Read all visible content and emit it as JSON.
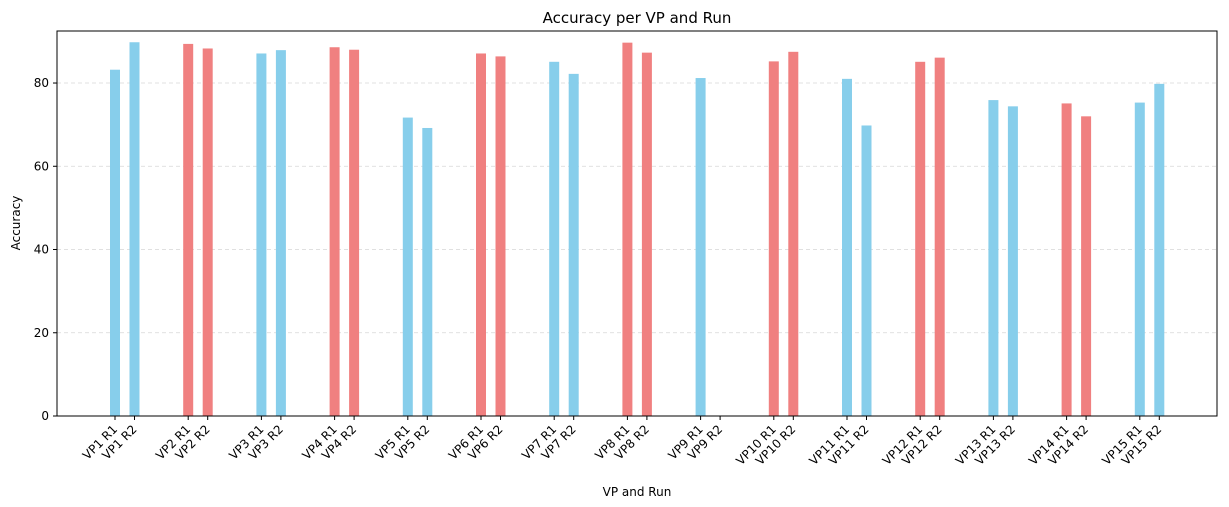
{
  "chart_data": {
    "type": "bar",
    "title": "Accuracy per VP and Run",
    "xlabel": "VP and Run",
    "ylabel": "Accuracy",
    "ylim": [
      0,
      92.5
    ],
    "yticks": [
      0,
      20,
      40,
      60,
      80
    ],
    "grid": "y-dashed",
    "colors": {
      "blue": "#87CEEB",
      "red": "#F08080"
    },
    "categories": [
      "VP1 R1",
      "VP1 R2",
      "VP2 R1",
      "VP2 R2",
      "VP3 R1",
      "VP3 R2",
      "VP4 R1",
      "VP4 R2",
      "VP5 R1",
      "VP5 R2",
      "VP6 R1",
      "VP6 R2",
      "VP7 R1",
      "VP7 R2",
      "VP8 R1",
      "VP8 R2",
      "VP9 R1",
      "VP9 R2",
      "VP10 R1",
      "VP10 R2",
      "VP11 R1",
      "VP11 R2",
      "VP12 R1",
      "VP12 R2",
      "VP13 R1",
      "VP13 R2",
      "VP14 R1",
      "VP14 R2",
      "VP15 R1",
      "VP15 R2"
    ],
    "values": [
      83.2,
      89.8,
      89.4,
      88.3,
      87.1,
      87.9,
      88.6,
      88.0,
      71.7,
      69.2,
      87.1,
      86.4,
      85.1,
      82.2,
      89.7,
      87.3,
      81.2,
      null,
      85.2,
      87.5,
      81.0,
      69.8,
      85.1,
      86.1,
      75.9,
      74.4,
      75.1,
      72.0,
      75.3,
      79.8
    ],
    "bar_colors": [
      "blue",
      "blue",
      "red",
      "red",
      "blue",
      "blue",
      "red",
      "red",
      "blue",
      "blue",
      "red",
      "red",
      "blue",
      "blue",
      "red",
      "red",
      "blue",
      "blue",
      "red",
      "red",
      "blue",
      "blue",
      "red",
      "red",
      "blue",
      "blue",
      "red",
      "red",
      "blue",
      "blue"
    ]
  }
}
